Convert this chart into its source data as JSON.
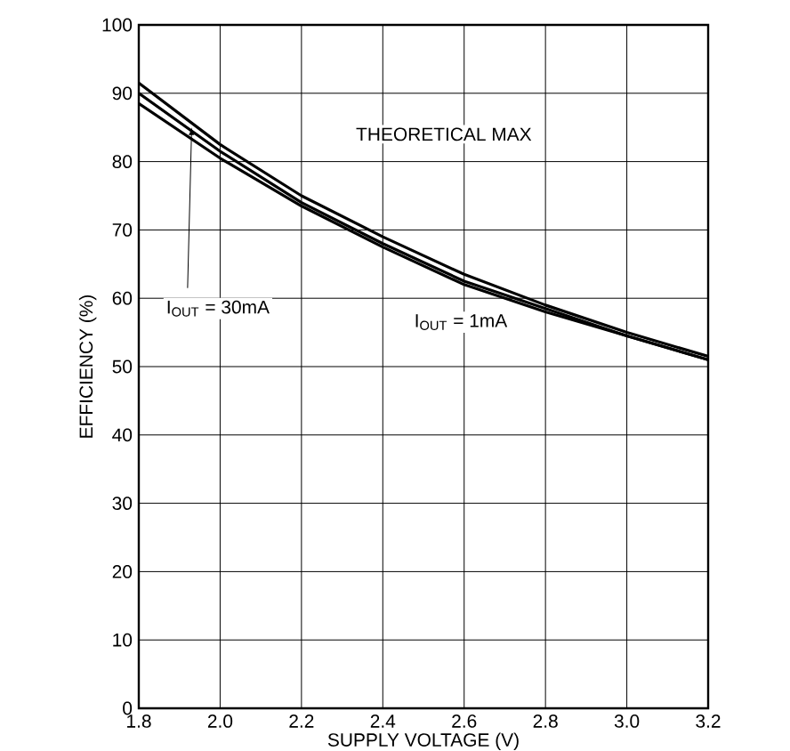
{
  "chart_data": {
    "type": "line",
    "xlabel": "SUPPLY VOLTAGE (V)",
    "ylabel": "EFFICIENCY (%)",
    "x": [
      1.8,
      2.0,
      2.2,
      2.4,
      2.6,
      2.8,
      3.0,
      3.2
    ],
    "series": [
      {
        "color": "#000000",
        "values": [
          91.5,
          82.5,
          75,
          69,
          63.5,
          59,
          55,
          51.5
        ]
      },
      {
        "color": "#000000",
        "values": [
          90,
          81.5,
          74,
          68,
          62.5,
          58.5,
          54.5,
          51
        ]
      },
      {
        "color": "#000000",
        "values": [
          88.5,
          80.5,
          73.5,
          67.5,
          62,
          58,
          54.5,
          51
        ]
      }
    ],
    "annotations": [
      "THEORETICAL MAX",
      {
        "text": "I$_{OUT}$ = 30mA",
        "x": 1.93,
        "y": 85
      },
      "I$_{OUT}$ = 1mA"
    ],
    "xlim": [
      1.8,
      3.2
    ],
    "ylim": [
      0,
      100
    ],
    "xticks": [
      {
        "value": 1.8,
        "label": "1.8"
      },
      {
        "value": 2.0,
        "label": "2.0"
      },
      {
        "value": 2.2,
        "label": "2.2"
      },
      {
        "value": 2.4,
        "label": "2.4"
      },
      {
        "value": 2.6,
        "label": "2.6"
      },
      {
        "value": 2.8,
        "label": "2.8"
      },
      {
        "value": 3.0,
        "label": "3.0"
      },
      {
        "value": 3.2,
        "label": "3.2"
      }
    ],
    "yticks": [
      0,
      10,
      20,
      30,
      40,
      50,
      60,
      70,
      80,
      90,
      100
    ],
    "grid": true,
    "marker": "none",
    "line_style": "solid"
  }
}
